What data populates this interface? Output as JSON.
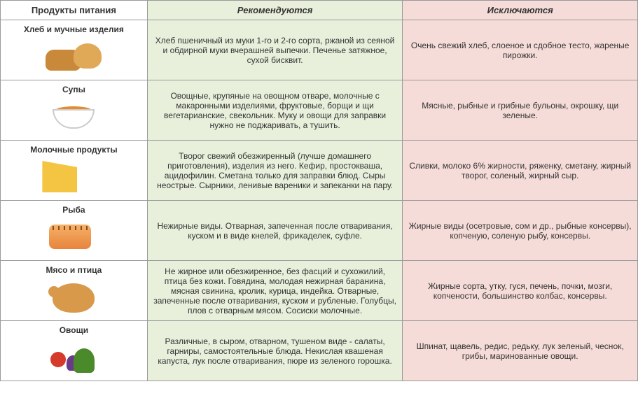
{
  "headers": {
    "product": "Продукты питания",
    "recommend": "Рекомендуются",
    "exclude": "Исключаются"
  },
  "rows": [
    {
      "label": "Хлеб и мучные изделия",
      "icon": "bread-icon",
      "recommend": "Хлеб пшеничный из муки 1-го и 2-го сорта, ржаной из сеяной и обдирной муки вчерашней выпечки. Печенье затяжное, сухой бисквит.",
      "exclude": "Очень свежий хлеб, слоеное и сдобное тесто, жареные пирожки."
    },
    {
      "label": "Супы",
      "icon": "soup-icon",
      "recommend": "Овощные, крупяные на овощном отваре, молочные с макаронными изделиями, фруктовые, борщи и щи вегетарианские, свекольник. Муку и овощи для заправки нужно не поджаривать, а тушить.",
      "exclude": "Мясные, рыбные и грибные бульоны, окрошку, щи зеленые."
    },
    {
      "label": "Молочные продукты",
      "icon": "dairy-icon",
      "recommend": "Творог свежий обезжиренный (лучше домашнего приготовления), изделия из него. Кефир, простокваша, ацидофилин. Сметана только для заправки блюд. Сыры неострые. Сырники, ленивые вареники и запеканки на пару.",
      "exclude": "Сливки, молоко 6% жирности, ряженку, сметану, жирный творог, соленый, жирный сыр."
    },
    {
      "label": "Рыба",
      "icon": "fish-icon",
      "recommend": "Нежирные виды. Отварная, запеченная после отваривания, куском и в виде кнелей, фрикаделек, суфле.",
      "exclude": "Жирные виды (осетровые, сом и др., рыбные консервы), копченую, соленую рыбу, консервы."
    },
    {
      "label": "Мясо и птица",
      "icon": "meat-icon",
      "recommend": "Не жирное или обезжиренное, без фасций и сухожилий, птица без кожи. Говядина, молодая нежирная баранина, мясная свинина, кролик, курица, индейка. Отварные, запеченные после отваривания, куском и рубленые. Голубцы, плов с отварным мясом. Сосиски молочные.",
      "exclude": "Жирные сорта, утку, гуся, печень, почки, мозги, копчености, большинство колбас, консервы."
    },
    {
      "label": "Овощи",
      "icon": "vegetables-icon",
      "recommend": "Различные, в сыром, отварном, тушеном виде - салаты, гарниры, самостоятельные блюда. Некислая квашеная капуста, лук после отваривания, пюре из зеленого горошка.",
      "exclude": "Шпинат, щавель, редис, редьку, лук зеленый, чеснок, грибы, маринованные овощи."
    }
  ],
  "colors": {
    "recommend_bg": "#e8f0dc",
    "exclude_bg": "#f5dcd8",
    "border": "#999999"
  }
}
